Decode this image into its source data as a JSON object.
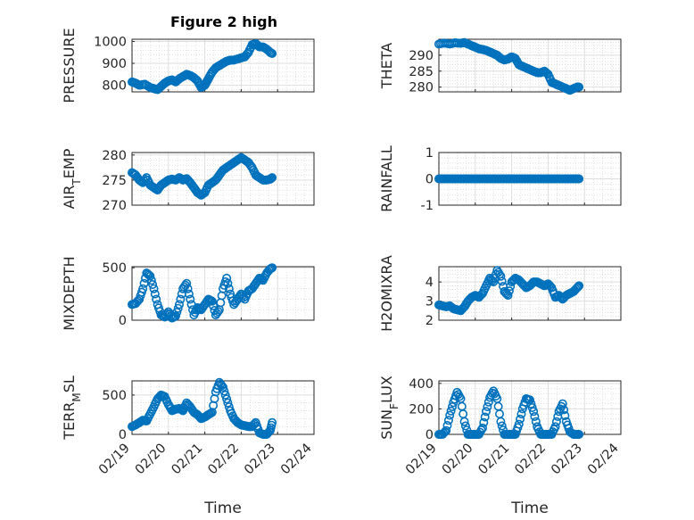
{
  "figure": {
    "title": "Figure 2 high",
    "series_color": "#0072bd"
  },
  "chart_data": [
    {
      "type": "scatter",
      "name": "PRESSURE",
      "ylabel": "PRESSURE",
      "xlabel": "",
      "ylim": [
        770,
        1010
      ],
      "yticks": [
        800,
        900,
        1000
      ],
      "xlim": [
        0,
        5
      ],
      "xticks": [
        "02/19",
        "02/20",
        "02/21",
        "02/22",
        "02/23",
        "02/24"
      ],
      "show_xticklabels": false,
      "x": [
        0.0,
        0.1,
        0.2,
        0.35,
        0.5,
        0.6,
        0.7,
        0.8,
        0.9,
        1.0,
        1.1,
        1.2,
        1.3,
        1.4,
        1.5,
        1.6,
        1.7,
        1.8,
        1.9,
        2.0,
        2.05,
        2.1,
        2.2,
        2.3,
        2.4,
        2.5,
        2.6,
        2.7,
        2.8,
        2.9,
        3.0,
        3.1,
        3.2,
        3.3,
        3.4,
        3.5,
        3.6,
        3.7,
        3.8,
        3.85
      ],
      "y": [
        815,
        810,
        800,
        805,
        790,
        785,
        780,
        795,
        810,
        820,
        825,
        815,
        830,
        840,
        850,
        845,
        835,
        820,
        790,
        800,
        815,
        830,
        860,
        880,
        890,
        900,
        910,
        915,
        915,
        920,
        925,
        930,
        950,
        985,
        990,
        975,
        975,
        965,
        950,
        945
      ]
    },
    {
      "type": "scatter",
      "name": "THETA",
      "ylabel": "THETA",
      "xlabel": "",
      "ylim": [
        278.5,
        295
      ],
      "yticks": [
        280,
        285,
        290
      ],
      "xlim": [
        0,
        5
      ],
      "xticks": [
        "02/19",
        "02/20",
        "02/21",
        "02/22",
        "02/23",
        "02/24"
      ],
      "show_xticklabels": false,
      "x": [
        0.0,
        0.15,
        0.3,
        0.45,
        0.6,
        0.7,
        0.8,
        0.9,
        1.0,
        1.1,
        1.2,
        1.3,
        1.4,
        1.5,
        1.6,
        1.7,
        1.8,
        1.9,
        2.0,
        2.1,
        2.2,
        2.3,
        2.4,
        2.5,
        2.6,
        2.7,
        2.8,
        2.9,
        3.0,
        3.1,
        3.2,
        3.3,
        3.4,
        3.5,
        3.6,
        3.7,
        3.8,
        3.85
      ],
      "y": [
        293.5,
        293.8,
        293.5,
        293.9,
        293.7,
        294.0,
        293.5,
        293.0,
        292.5,
        292.0,
        291.8,
        291.5,
        291.0,
        290.5,
        290.0,
        289.0,
        288.5,
        288.8,
        289.5,
        289.0,
        287.0,
        286.5,
        286.0,
        285.5,
        285.0,
        284.5,
        284.5,
        285.0,
        284.0,
        281.5,
        281.0,
        280.5,
        280.0,
        279.5,
        279.0,
        279.5,
        280.0,
        280.0
      ]
    },
    {
      "type": "scatter",
      "name": "AIR_TEMP",
      "ylabel": "AIR_TEMP",
      "xlabel": "",
      "ylim": [
        270,
        280.5
      ],
      "yticks": [
        270,
        275,
        280
      ],
      "xlim": [
        0,
        5
      ],
      "xticks": [
        "02/19",
        "02/20",
        "02/21",
        "02/22",
        "02/23",
        "02/24"
      ],
      "show_xticklabels": false,
      "x": [
        0.0,
        0.1,
        0.2,
        0.3,
        0.4,
        0.5,
        0.6,
        0.7,
        0.8,
        0.9,
        1.0,
        1.1,
        1.2,
        1.3,
        1.4,
        1.5,
        1.6,
        1.7,
        1.8,
        1.9,
        2.0,
        2.1,
        2.2,
        2.3,
        2.4,
        2.5,
        2.6,
        2.7,
        2.8,
        2.9,
        3.0,
        3.1,
        3.2,
        3.3,
        3.4,
        3.5,
        3.6,
        3.7,
        3.8,
        3.85
      ],
      "y": [
        276.5,
        276.0,
        275.0,
        274.5,
        275.5,
        274.0,
        273.5,
        273.0,
        274.0,
        274.5,
        275.0,
        275.2,
        275.0,
        275.5,
        275.0,
        275.3,
        274.5,
        273.5,
        272.5,
        272.0,
        272.5,
        274.0,
        274.5,
        275.0,
        276.0,
        277.0,
        277.5,
        278.0,
        278.5,
        279.0,
        279.5,
        279.0,
        278.5,
        277.5,
        276.0,
        275.5,
        275.0,
        275.0,
        275.2,
        275.5
      ]
    },
    {
      "type": "scatter",
      "name": "RAINFALL",
      "ylabel": "RAINFALL",
      "xlabel": "",
      "ylim": [
        -1,
        1
      ],
      "yticks": [
        -1,
        0,
        1
      ],
      "xlim": [
        0,
        5
      ],
      "xticks": [
        "02/19",
        "02/20",
        "02/21",
        "02/22",
        "02/23",
        "02/24"
      ],
      "show_xticklabels": false,
      "x": [
        0.0,
        0.1,
        0.2,
        0.3,
        0.4,
        0.5,
        0.6,
        0.7,
        0.8,
        0.9,
        1.0,
        1.1,
        1.2,
        1.3,
        1.4,
        1.5,
        1.6,
        1.7,
        1.8,
        1.9,
        2.0,
        2.1,
        2.2,
        2.3,
        2.4,
        2.5,
        2.6,
        2.7,
        2.8,
        2.9,
        3.0,
        3.1,
        3.2,
        3.3,
        3.4,
        3.5,
        3.6,
        3.7,
        3.8,
        3.85
      ],
      "y": [
        0,
        0,
        0,
        0,
        0,
        0,
        0,
        0,
        0,
        0,
        0,
        0,
        0,
        0,
        0,
        0,
        0,
        0,
        0,
        0,
        0,
        0,
        0,
        0,
        0,
        0,
        0,
        0,
        0,
        0,
        0,
        0,
        0,
        0,
        0,
        0,
        0,
        0,
        0,
        0
      ]
    },
    {
      "type": "scatter",
      "name": "MIXDEPTH",
      "ylabel": "MIXDEPTH",
      "xlabel": "",
      "ylim": [
        0,
        510
      ],
      "yticks": [
        0,
        500
      ],
      "xlim": [
        0,
        5
      ],
      "xticks": [
        "02/19",
        "02/20",
        "02/21",
        "02/22",
        "02/23",
        "02/24"
      ],
      "show_xticklabels": false,
      "x": [
        0.0,
        0.1,
        0.2,
        0.3,
        0.4,
        0.5,
        0.6,
        0.7,
        0.8,
        0.9,
        1.0,
        1.1,
        1.2,
        1.3,
        1.4,
        1.5,
        1.6,
        1.7,
        1.8,
        1.9,
        2.0,
        2.1,
        2.2,
        2.3,
        2.4,
        2.5,
        2.6,
        2.7,
        2.8,
        2.9,
        3.0,
        3.1,
        3.2,
        3.3,
        3.4,
        3.5,
        3.6,
        3.7,
        3.8,
        3.85
      ],
      "y": [
        150,
        160,
        200,
        300,
        450,
        420,
        300,
        150,
        50,
        30,
        80,
        20,
        40,
        150,
        300,
        350,
        200,
        50,
        120,
        100,
        150,
        200,
        180,
        50,
        100,
        300,
        400,
        250,
        150,
        200,
        250,
        200,
        280,
        300,
        350,
        400,
        380,
        450,
        490,
        500
      ]
    },
    {
      "type": "scatter",
      "name": "H2OMIXRA",
      "ylabel": "H2OMIXRA",
      "xlabel": "",
      "ylim": [
        2,
        4.8
      ],
      "yticks": [
        2,
        3,
        4
      ],
      "xlim": [
        0,
        5
      ],
      "xticks": [
        "02/19",
        "02/20",
        "02/21",
        "02/22",
        "02/23",
        "02/24"
      ],
      "show_xticklabels": false,
      "x": [
        0.0,
        0.1,
        0.2,
        0.3,
        0.4,
        0.5,
        0.6,
        0.7,
        0.8,
        0.9,
        1.0,
        1.1,
        1.2,
        1.3,
        1.4,
        1.5,
        1.6,
        1.7,
        1.8,
        1.9,
        2.0,
        2.1,
        2.2,
        2.3,
        2.4,
        2.5,
        2.6,
        2.7,
        2.8,
        2.9,
        3.0,
        3.1,
        3.2,
        3.3,
        3.4,
        3.5,
        3.6,
        3.7,
        3.8,
        3.85
      ],
      "y": [
        2.8,
        2.75,
        2.7,
        2.75,
        2.6,
        2.55,
        2.5,
        2.7,
        3.0,
        3.2,
        3.3,
        3.2,
        3.4,
        3.8,
        4.2,
        4.0,
        4.6,
        4.3,
        3.5,
        3.3,
        4.0,
        4.2,
        4.1,
        3.9,
        3.7,
        3.8,
        4.0,
        4.0,
        3.9,
        3.8,
        3.9,
        3.7,
        3.2,
        3.3,
        3.1,
        3.3,
        3.4,
        3.5,
        3.7,
        3.8
      ]
    },
    {
      "type": "scatter",
      "name": "TERR_MSL",
      "ylabel": "TERR_MSL",
      "xlabel": "Time",
      "ylim": [
        0,
        680
      ],
      "yticks": [
        0,
        500
      ],
      "xlim": [
        0,
        5
      ],
      "xticks": [
        "02/19",
        "02/20",
        "02/21",
        "02/22",
        "02/23",
        "02/24"
      ],
      "show_xticklabels": true,
      "x": [
        0.0,
        0.1,
        0.2,
        0.3,
        0.4,
        0.5,
        0.6,
        0.7,
        0.8,
        0.9,
        1.0,
        1.1,
        1.2,
        1.3,
        1.4,
        1.5,
        1.6,
        1.7,
        1.8,
        1.9,
        2.0,
        2.1,
        2.2,
        2.3,
        2.4,
        2.5,
        2.6,
        2.7,
        2.8,
        2.9,
        3.0,
        3.1,
        3.2,
        3.3,
        3.4,
        3.5,
        3.6,
        3.7,
        3.8,
        3.85
      ],
      "y": [
        100,
        120,
        150,
        180,
        170,
        260,
        350,
        450,
        500,
        480,
        380,
        300,
        320,
        330,
        300,
        400,
        350,
        280,
        250,
        200,
        220,
        250,
        280,
        540,
        660,
        600,
        450,
        300,
        200,
        150,
        120,
        110,
        100,
        100,
        150,
        20,
        0,
        0,
        50,
        150
      ]
    },
    {
      "type": "scatter",
      "name": "SUN_FLUX",
      "ylabel": "SUN_FLUX",
      "xlabel": "Time",
      "ylim": [
        0,
        420
      ],
      "yticks": [
        0,
        200,
        400
      ],
      "xlim": [
        0,
        5
      ],
      "xticks": [
        "02/19",
        "02/20",
        "02/21",
        "02/22",
        "02/23",
        "02/24"
      ],
      "show_xticklabels": true,
      "x": [
        0.0,
        0.1,
        0.2,
        0.3,
        0.4,
        0.5,
        0.6,
        0.7,
        0.8,
        0.9,
        1.0,
        1.1,
        1.2,
        1.3,
        1.4,
        1.5,
        1.6,
        1.7,
        1.8,
        1.9,
        2.0,
        2.1,
        2.2,
        2.3,
        2.4,
        2.5,
        2.6,
        2.7,
        2.8,
        2.9,
        3.0,
        3.1,
        3.2,
        3.3,
        3.4,
        3.5,
        3.6,
        3.7,
        3.8,
        3.85
      ],
      "y": [
        0,
        0,
        30,
        150,
        250,
        330,
        280,
        100,
        0,
        0,
        0,
        0,
        50,
        180,
        290,
        340,
        280,
        100,
        0,
        0,
        0,
        0,
        80,
        200,
        280,
        270,
        180,
        60,
        0,
        0,
        0,
        0,
        60,
        180,
        240,
        100,
        20,
        0,
        0,
        0
      ]
    }
  ]
}
